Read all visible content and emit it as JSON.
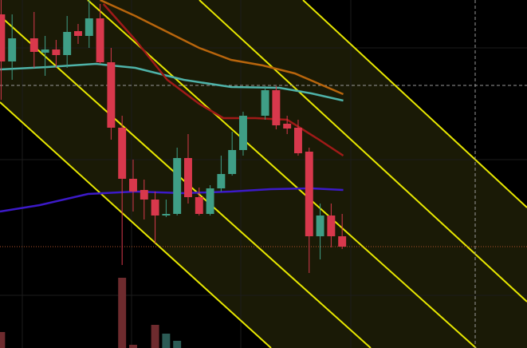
{
  "chart_data": {
    "type": "candlestick",
    "xlim": [
      -0.1,
      47.8
    ],
    "ylim": [
      0,
      436
    ],
    "up_color": "#3f9e86",
    "down_color": "#d8384c",
    "volume_up_color": "#2b5b55",
    "volume_down_color": "#6e2b2e",
    "x": [
      0,
      1,
      3,
      4,
      5,
      6,
      7,
      8,
      9,
      10,
      11,
      12,
      13,
      14,
      15,
      16,
      17,
      18,
      19,
      20,
      21,
      22,
      24,
      25,
      26,
      27,
      28,
      29,
      30,
      31
    ],
    "open": [
      418,
      359,
      388,
      370,
      374,
      367,
      397,
      391,
      413,
      358,
      276,
      212,
      198,
      186,
      166,
      168,
      238,
      189,
      168,
      200,
      218,
      248,
      291,
      323,
      281,
      276,
      246,
      140,
      166,
      140
    ],
    "high": [
      436,
      418,
      421,
      391,
      386,
      416,
      406,
      436,
      431,
      376,
      291,
      236,
      211,
      196,
      186,
      251,
      268,
      201,
      204,
      241,
      271,
      296,
      328,
      328,
      291,
      286,
      251,
      181,
      181,
      168
    ],
    "low": [
      311,
      336,
      351,
      341,
      351,
      351,
      381,
      376,
      356,
      261,
      104,
      171,
      161,
      131,
      164,
      166,
      181,
      166,
      166,
      196,
      216,
      241,
      286,
      274,
      268,
      241,
      94,
      111,
      126,
      124
    ],
    "close": [
      359,
      388,
      371,
      374,
      367,
      396,
      391,
      413,
      358,
      276,
      212,
      196,
      186,
      166,
      168,
      238,
      189,
      168,
      200,
      218,
      248,
      291,
      323,
      279,
      275,
      244,
      140,
      166,
      140,
      127
    ],
    "volume": [
      20,
      null,
      null,
      null,
      null,
      null,
      null,
      null,
      null,
      null,
      88,
      4,
      null,
      29,
      18,
      9,
      null,
      null,
      null,
      null,
      null,
      null,
      null,
      null,
      null,
      null,
      null,
      null,
      null,
      null
    ],
    "lines": [
      {
        "color": "#b8650c",
        "x": [
          9.0,
          12.2,
          15.1,
          18.0,
          20.9,
          23.8,
          26.7,
          28.9,
          31.1
        ],
        "values": [
          436,
          416,
          396,
          376,
          361,
          354,
          344,
          331,
          318
        ]
      },
      {
        "color": "#4fb3a9",
        "x": [
          -0.1,
          4.2,
          8.6,
          12.2,
          16.6,
          20.9,
          25.3,
          28.2,
          31.1
        ],
        "values": [
          349,
          352,
          356,
          351,
          336,
          327,
          326,
          319,
          310
        ]
      },
      {
        "color": "#a01a18",
        "x": [
          9.3,
          12.2,
          15.1,
          18.0,
          20.2,
          23.1,
          26.0,
          28.9,
          31.1
        ],
        "values": [
          431,
          386,
          336,
          306,
          288,
          288,
          286,
          261,
          241
        ]
      },
      {
        "color": "#3c1ac8",
        "x": [
          -0.1,
          3.5,
          7.9,
          12.2,
          16.6,
          20.9,
          24.5,
          28.2,
          31.1
        ],
        "values": [
          171,
          179,
          193,
          196,
          194,
          196,
          199,
          200,
          198
        ]
      }
    ]
  }
}
